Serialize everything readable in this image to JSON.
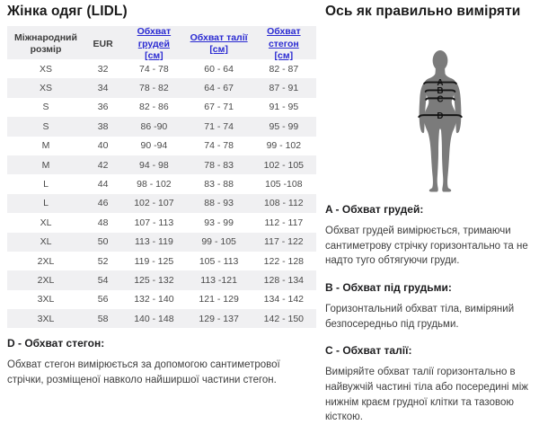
{
  "title": "Жінка одяг (LIDL)",
  "measure_title": "Ось як правильно виміряти",
  "table": {
    "headers": [
      {
        "label": "Міжнародний розмір",
        "link": false
      },
      {
        "label": "EUR",
        "link": false
      },
      {
        "label": "Обхват грудей",
        "unit": "[см]",
        "link": true
      },
      {
        "label": "Обхват талії",
        "unit": "[см]",
        "link": true
      },
      {
        "label": "Обхват стегон",
        "unit": "[см]",
        "link": true
      }
    ],
    "rows": [
      [
        "XS",
        "32",
        "74 - 78",
        "60 - 64",
        "82 - 87"
      ],
      [
        "XS",
        "34",
        "78 - 82",
        "64 - 67",
        "87 - 91"
      ],
      [
        "S",
        "36",
        "82 - 86",
        "67 - 71",
        "91 - 95"
      ],
      [
        "S",
        "38",
        "86 -90",
        "71 - 74",
        "95 - 99"
      ],
      [
        "M",
        "40",
        "90 -94",
        "74 - 78",
        "99 - 102"
      ],
      [
        "M",
        "42",
        "94 - 98",
        "78 - 83",
        "102 - 105"
      ],
      [
        "L",
        "44",
        "98 - 102",
        "83 - 88",
        "105 -108"
      ],
      [
        "L",
        "46",
        "102 - 107",
        "88 - 93",
        "108 - 112"
      ],
      [
        "XL",
        "48",
        "107 - 113",
        "93 - 99",
        "112 - 117"
      ],
      [
        "XL",
        "50",
        "113 - 119",
        "99 - 105",
        "117 - 122"
      ],
      [
        "2XL",
        "52",
        "119 - 125",
        "105 - 113",
        "122 - 128"
      ],
      [
        "2XL",
        "54",
        "125 - 132",
        "113 -121",
        "128 - 134"
      ],
      [
        "3XL",
        "56",
        "132 - 140",
        "121 - 129",
        "134 - 142"
      ],
      [
        "3XL",
        "58",
        "140 - 148",
        "129 - 137",
        "142 - 150"
      ]
    ]
  },
  "figure": {
    "labels": [
      "A",
      "B",
      "C",
      "D"
    ]
  },
  "notes": {
    "d": {
      "heading": "D - Обхват стегон:",
      "text": "Обхват стегон вимірюється за допомогою сантиметрової стрічки, розміщеної навколо найширшої частини стегон."
    },
    "a": {
      "heading": "A - Обхват грудей:",
      "text": "Обхват грудей вимірюється, тримаючи сантиметрову стрічку горизонтально та не надто туго обтягуючи груди."
    },
    "b": {
      "heading": "B - Обхват під грудьми:",
      "text": "Горизонтальний обхват тіла, виміряний безпосередньо під грудьми."
    },
    "c": {
      "heading": "C - Обхват талії:",
      "text": "Виміряйте обхват талії горизонтально в найвужчій частині тіла або посередині між нижнім краєм грудної клітки та тазовою кісткою."
    }
  },
  "colors": {
    "link": "#2a2ad2",
    "stripe": "#f0f0f2",
    "silhouette": "#7b7b7b",
    "measure_line": "#161616"
  }
}
